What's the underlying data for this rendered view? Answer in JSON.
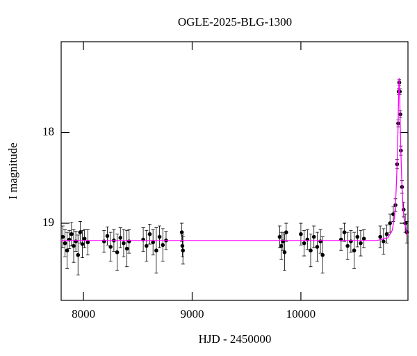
{
  "chart_data": {
    "type": "scatter",
    "title": "OGLE-2025-BLG-1300",
    "xlabel": "HJD - 2450000",
    "ylabel": "I magnitude",
    "xlim": [
      7795,
      10985
    ],
    "ylim": [
      19.85,
      17.0
    ],
    "xticks": [
      8000,
      9000,
      10000
    ],
    "yticks": [
      18,
      19
    ],
    "series": [
      {
        "color": "#000000",
        "x": [
          7810,
          7830,
          7850,
          7870,
          7890,
          7910,
          7930,
          7950,
          7970,
          7990,
          8010,
          8040,
          8190,
          8220,
          8250,
          8280,
          8310,
          8340,
          8370,
          8400,
          8420,
          8550,
          8580,
          8610,
          8640,
          8670,
          8700,
          8730,
          8760,
          8905,
          8910,
          8915,
          9805,
          9820,
          9835,
          9850,
          9865,
          10000,
          10030,
          10060,
          10090,
          10120,
          10150,
          10180,
          10200,
          10370,
          10400,
          10430,
          10460,
          10490,
          10520,
          10550,
          10580,
          10730,
          10760,
          10790,
          10820,
          10850,
          10870,
          10885,
          10895,
          10900,
          10905,
          10910,
          10915,
          10920,
          10930,
          10945,
          10960,
          10975
        ],
        "values": [
          19.15,
          19.22,
          19.3,
          19.18,
          19.12,
          19.25,
          19.2,
          19.35,
          19.1,
          19.23,
          19.17,
          19.21,
          19.2,
          19.14,
          19.26,
          19.19,
          19.32,
          19.16,
          19.22,
          19.28,
          19.2,
          19.18,
          19.25,
          19.12,
          19.21,
          19.3,
          19.15,
          19.24,
          19.19,
          19.1,
          19.25,
          19.3,
          19.15,
          19.25,
          19.2,
          19.32,
          19.1,
          19.12,
          19.22,
          19.18,
          19.3,
          19.15,
          19.26,
          19.2,
          19.35,
          19.18,
          19.1,
          19.25,
          19.2,
          19.3,
          19.15,
          19.22,
          19.17,
          19.15,
          19.2,
          19.12,
          19.0,
          18.9,
          18.8,
          18.35,
          17.9,
          17.55,
          17.45,
          17.55,
          17.8,
          18.2,
          18.6,
          18.85,
          19.0,
          19.1
        ],
        "errors": [
          0.12,
          0.15,
          0.2,
          0.1,
          0.13,
          0.18,
          0.11,
          0.22,
          0.12,
          0.15,
          0.1,
          0.14,
          0.12,
          0.1,
          0.16,
          0.12,
          0.2,
          0.11,
          0.15,
          0.2,
          0.13,
          0.13,
          0.17,
          0.11,
          0.14,
          0.25,
          0.12,
          0.18,
          0.1,
          0.1,
          0.12,
          0.15,
          0.12,
          0.15,
          0.1,
          0.2,
          0.1,
          0.12,
          0.14,
          0.11,
          0.18,
          0.12,
          0.16,
          0.13,
          0.2,
          0.12,
          0.1,
          0.15,
          0.12,
          0.2,
          0.11,
          0.14,
          0.1,
          0.12,
          0.14,
          0.1,
          0.1,
          0.08,
          0.07,
          0.05,
          0.04,
          0.03,
          0.03,
          0.03,
          0.04,
          0.05,
          0.07,
          0.08,
          0.1,
          0.12
        ]
      },
      {
        "color": "#ff00ff",
        "x": [
          7795,
          10700,
          10800,
          10840,
          10860,
          10870,
          10880,
          10890,
          10895,
          10900,
          10904,
          10908,
          10913,
          10918,
          10928,
          10938,
          10948,
          10968,
          10985
        ],
        "values": [
          19.19,
          19.19,
          19.16,
          19.08,
          18.94,
          18.8,
          18.53,
          18.15,
          17.85,
          17.53,
          17.4,
          17.53,
          17.85,
          18.15,
          18.53,
          18.8,
          18.94,
          19.08,
          19.13
        ]
      }
    ]
  }
}
